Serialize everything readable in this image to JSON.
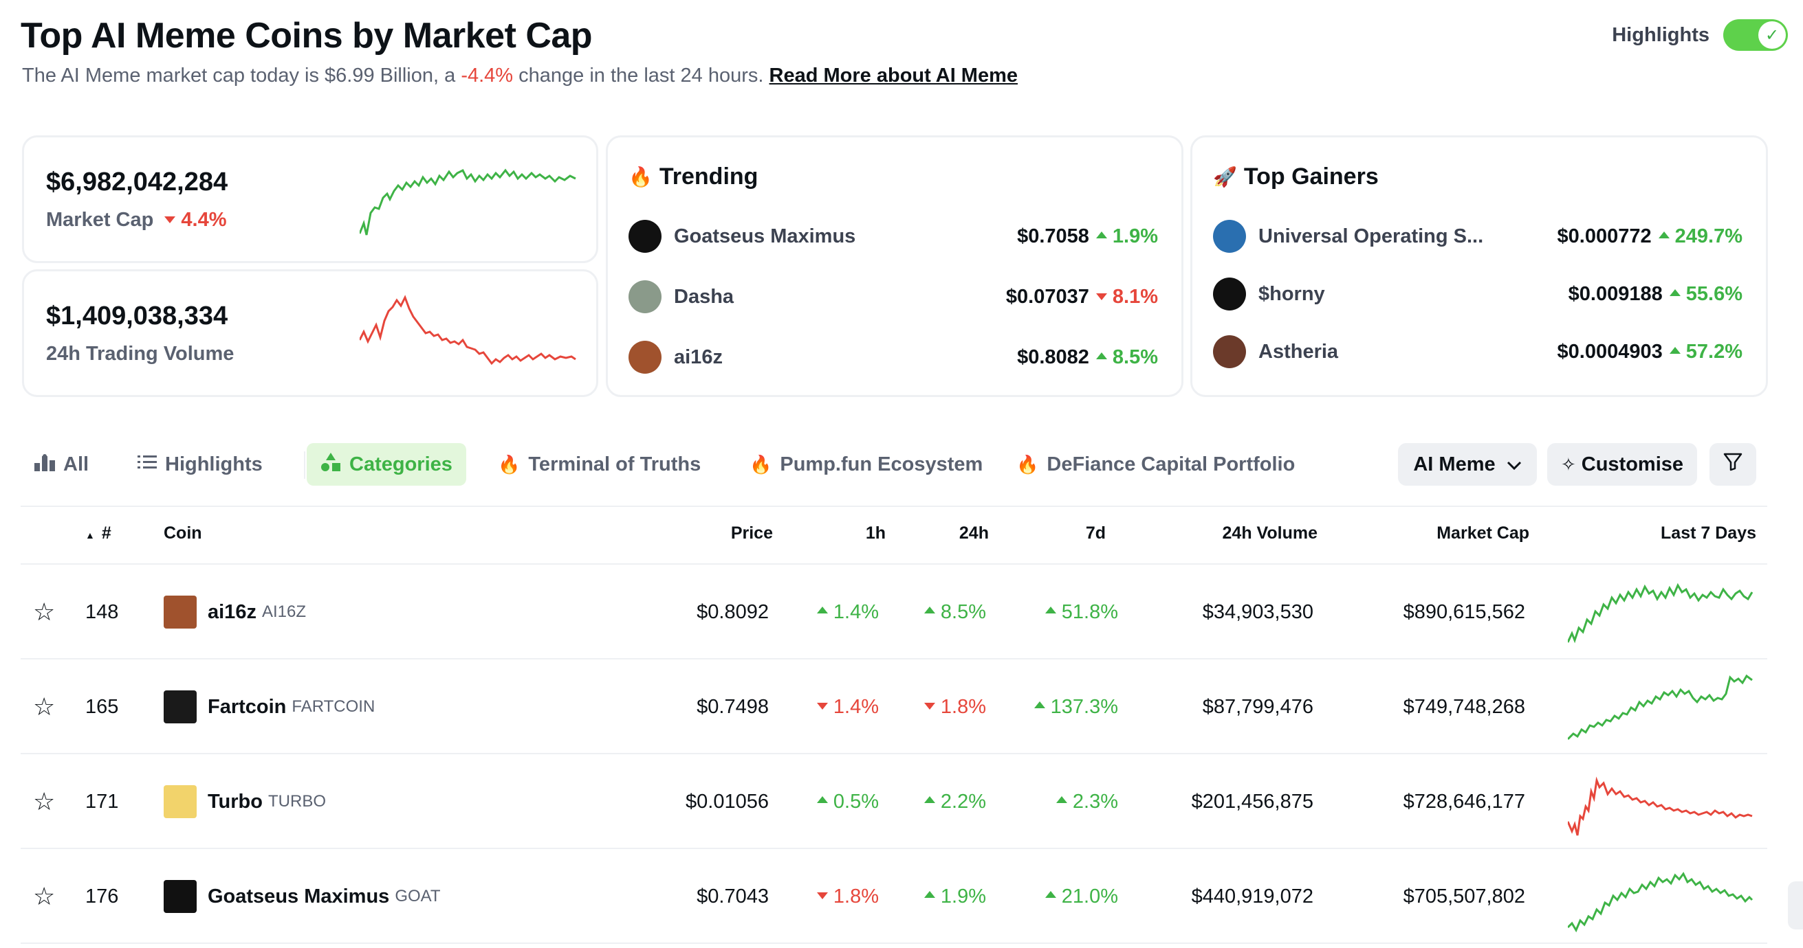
{
  "header": {
    "title": "Top AI Meme Coins by Market Cap",
    "subtitle_prefix": "The AI Meme market cap today is $6.99 Billion, a",
    "subtitle_change": "-4.4%",
    "subtitle_suffix": "change in the last 24 hours.",
    "read_more_link": "Read More about AI Meme",
    "highlights_label": "Highlights",
    "highlights_on": true
  },
  "stats": {
    "market_cap": {
      "value": "$6,982,042,284",
      "label": "Market Cap",
      "change": "4.4%",
      "direction": "down"
    },
    "volume": {
      "value": "$1,409,038,334",
      "label": "24h Trading Volume"
    }
  },
  "trending": {
    "title": "Trending",
    "icon": "fire-icon",
    "items": [
      {
        "name": "Goatseus Maximus",
        "price": "$0.7058",
        "change": "1.9%",
        "direction": "up",
        "avatar_color": "#111111"
      },
      {
        "name": "Dasha",
        "price": "$0.07037",
        "change": "8.1%",
        "direction": "down",
        "avatar_color": "#8a9a8a"
      },
      {
        "name": "ai16z",
        "price": "$0.8082",
        "change": "8.5%",
        "direction": "up",
        "avatar_color": "#a0522d"
      }
    ]
  },
  "top_gainers": {
    "title": "Top Gainers",
    "icon": "rocket-icon",
    "items": [
      {
        "name": "Universal Operating S...",
        "price": "$0.000772",
        "change": "249.7%",
        "direction": "up",
        "avatar_color": "#2a6fb0"
      },
      {
        "name": "$horny",
        "price": "$0.009188",
        "change": "55.6%",
        "direction": "up",
        "avatar_color": "#111111"
      },
      {
        "name": "Astheria",
        "price": "$0.0004903",
        "change": "57.2%",
        "direction": "up",
        "avatar_color": "#6b3a2a"
      }
    ]
  },
  "tabs": [
    {
      "label": "All",
      "icon": "bar-chart-icon"
    },
    {
      "label": "Highlights",
      "icon": "list-icon"
    },
    {
      "label": "Categories",
      "icon": "shapes-icon",
      "active": true
    },
    {
      "label": "Terminal of Truths",
      "icon": "fire-icon"
    },
    {
      "label": "Pump.fun Ecosystem",
      "icon": "fire-icon"
    },
    {
      "label": "DeFiance Capital Portfolio",
      "icon": "fire-icon"
    }
  ],
  "toolbar": {
    "category_select": "AI Meme",
    "customise_label": "Customise",
    "filter_icon": "filter-icon"
  },
  "table": {
    "headers": {
      "rank": "#",
      "coin": "Coin",
      "price": "Price",
      "h1": "1h",
      "h24": "24h",
      "d7": "7d",
      "volume": "24h Volume",
      "mcap": "Market Cap",
      "last7": "Last 7 Days"
    },
    "rows": [
      {
        "rank": "148",
        "name": "ai16z",
        "symbol": "AI16Z",
        "price": "$0.8092",
        "h1": "1.4%",
        "h1_dir": "up",
        "h24": "8.5%",
        "h24_dir": "up",
        "d7": "51.8%",
        "d7_dir": "up",
        "volume": "$34,903,530",
        "mcap": "$890,615,562",
        "spark_color": "#3eb346",
        "thumb_color": "#a0522d"
      },
      {
        "rank": "165",
        "name": "Fartcoin",
        "symbol": "FARTCOIN",
        "price": "$0.7498",
        "h1": "1.4%",
        "h1_dir": "down",
        "h24": "1.8%",
        "h24_dir": "down",
        "d7": "137.3%",
        "d7_dir": "up",
        "volume": "$87,799,476",
        "mcap": "$749,748,268",
        "spark_color": "#3eb346",
        "thumb_color": "#1a1a1a"
      },
      {
        "rank": "171",
        "name": "Turbo",
        "symbol": "TURBO",
        "price": "$0.01056",
        "h1": "0.5%",
        "h1_dir": "up",
        "h24": "2.2%",
        "h24_dir": "up",
        "d7": "2.3%",
        "d7_dir": "up",
        "volume": "$201,456,875",
        "mcap": "$728,646,177",
        "spark_color": "#e6463b",
        "thumb_color": "#f2d36b"
      },
      {
        "rank": "176",
        "name": "Goatseus Maximus",
        "symbol": "GOAT",
        "price": "$0.7043",
        "h1": "1.8%",
        "h1_dir": "down",
        "h24": "1.9%",
        "h24_dir": "up",
        "d7": "21.0%",
        "d7_dir": "up",
        "volume": "$440,919,072",
        "mcap": "$705,507,802",
        "spark_color": "#3eb346",
        "thumb_color": "#111111"
      }
    ]
  },
  "colors": {
    "up": "#3eb346",
    "down": "#e6463b",
    "accent_green": "#5ed14b"
  }
}
